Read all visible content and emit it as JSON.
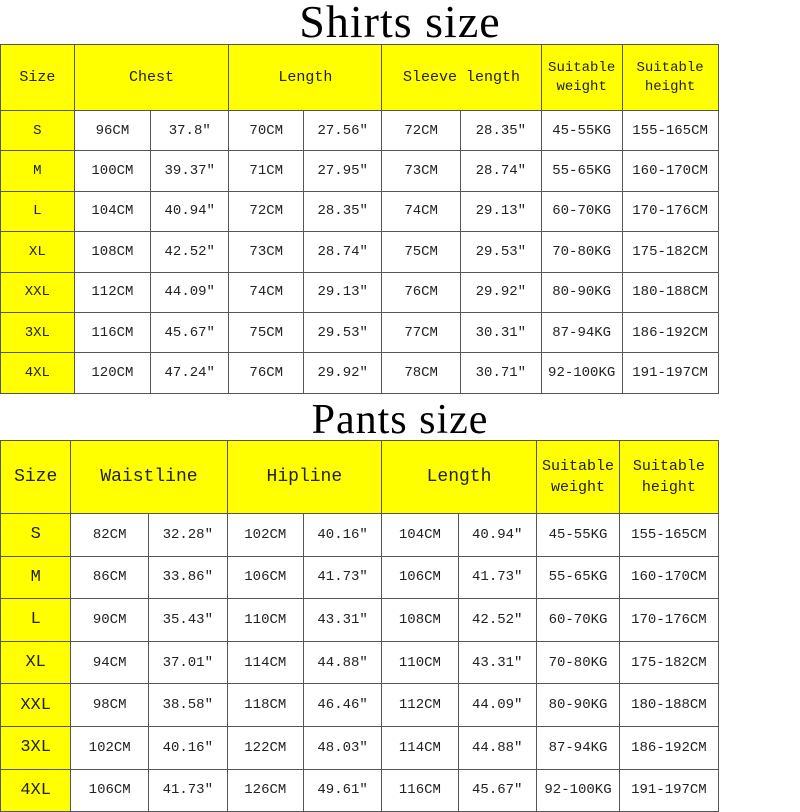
{
  "colors": {
    "header_bg": "#ffff00",
    "cell_bg": "#ffffff",
    "border": "#555555"
  },
  "shirts": {
    "title": "Shirts size",
    "headers": [
      {
        "label": "Size",
        "span": 1
      },
      {
        "label": "Chest",
        "span": 2
      },
      {
        "label": "Length",
        "span": 2
      },
      {
        "label": "Sleeve length",
        "span": 2
      },
      {
        "label": "Suitable weight",
        "lines": [
          "Suitable",
          "weight"
        ],
        "span": 1
      },
      {
        "label": "Suitable height",
        "lines": [
          "Suitable",
          "height"
        ],
        "span": 1
      }
    ],
    "rows": [
      [
        "S",
        "96CM",
        "37.8″",
        "70CM",
        "27.56″",
        "72CM",
        "28.35″",
        "45-55KG",
        "155-165CM"
      ],
      [
        "M",
        "100CM",
        "39.37″",
        "71CM",
        "27.95″",
        "73CM",
        "28.74″",
        "55-65KG",
        "160-170CM"
      ],
      [
        "L",
        "104CM",
        "40.94″",
        "72CM",
        "28.35″",
        "74CM",
        "29.13″",
        "60-70KG",
        "170-176CM"
      ],
      [
        "XL",
        "108CM",
        "42.52″",
        "73CM",
        "28.74″",
        "75CM",
        "29.53″",
        "70-80KG",
        "175-182CM"
      ],
      [
        "XXL",
        "112CM",
        "44.09″",
        "74CM",
        "29.13″",
        "76CM",
        "29.92″",
        "80-90KG",
        "180-188CM"
      ],
      [
        "3XL",
        "116CM",
        "45.67″",
        "75CM",
        "29.53″",
        "77CM",
        "30.31″",
        "87-94KG",
        "186-192CM"
      ],
      [
        "4XL",
        "120CM",
        "47.24″",
        "76CM",
        "29.92″",
        "78CM",
        "30.71″",
        "92-100KG",
        "191-197CM"
      ]
    ]
  },
  "pants": {
    "title": "Pants size",
    "headers": [
      {
        "label": "Size",
        "span": 1
      },
      {
        "label": "Waistline",
        "span": 2
      },
      {
        "label": "Hipline",
        "span": 2
      },
      {
        "label": "Length",
        "span": 2
      },
      {
        "label": "Suitable weight",
        "lines": [
          "Suitable",
          "weight"
        ],
        "span": 1
      },
      {
        "label": "Suitable height",
        "lines": [
          "Suitable",
          "height"
        ],
        "span": 1
      }
    ],
    "rows": [
      [
        "S",
        "82CM",
        "32.28″",
        "102CM",
        "40.16″",
        "104CM",
        "40.94″",
        "45-55KG",
        "155-165CM"
      ],
      [
        "M",
        "86CM",
        "33.86″",
        "106CM",
        "41.73″",
        "106CM",
        "41.73″",
        "55-65KG",
        "160-170CM"
      ],
      [
        "L",
        "90CM",
        "35.43″",
        "110CM",
        "43.31″",
        "108CM",
        "42.52″",
        "60-70KG",
        "170-176CM"
      ],
      [
        "XL",
        "94CM",
        "37.01″",
        "114CM",
        "44.88″",
        "110CM",
        "43.31″",
        "70-80KG",
        "175-182CM"
      ],
      [
        "XXL",
        "98CM",
        "38.58″",
        "118CM",
        "46.46″",
        "112CM",
        "44.09″",
        "80-90KG",
        "180-188CM"
      ],
      [
        "3XL",
        "102CM",
        "40.16″",
        "122CM",
        "48.03″",
        "114CM",
        "44.88″",
        "87-94KG",
        "186-192CM"
      ],
      [
        "4XL",
        "106CM",
        "41.73″",
        "126CM",
        "49.61″",
        "116CM",
        "45.67″",
        "92-100KG",
        "191-197CM"
      ]
    ]
  }
}
